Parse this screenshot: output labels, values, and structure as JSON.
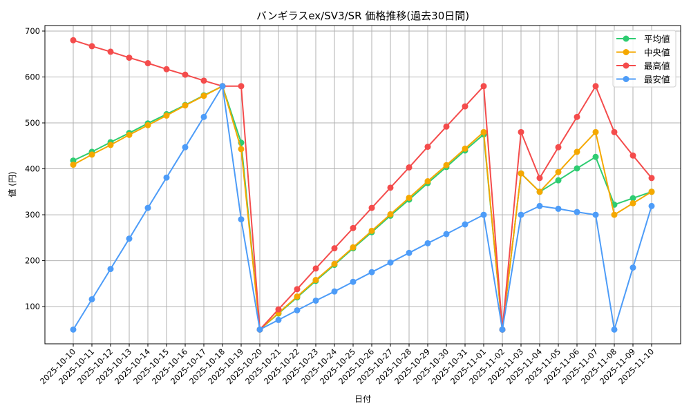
{
  "chart_data": {
    "type": "line",
    "title": "バンギラスex/SV3/SR 価格推移(過去30日間)",
    "xlabel": "日付",
    "ylabel": "値 (円)",
    "ylim": [
      19,
      712
    ],
    "yticks": [
      100,
      200,
      300,
      400,
      500,
      600,
      700
    ],
    "grid": true,
    "legend_position": "upper right",
    "x": [
      "2025-10-10",
      "2025-10-11",
      "2025-10-12",
      "2025-10-13",
      "2025-10-14",
      "2025-10-15",
      "2025-10-16",
      "2025-10-17",
      "2025-10-18",
      "2025-10-19",
      "2025-10-20",
      "2025-10-21",
      "2025-10-22",
      "2025-10-23",
      "2025-10-24",
      "2025-10-25",
      "2025-10-26",
      "2025-10-27",
      "2025-10-28",
      "2025-10-29",
      "2025-10-30",
      "2025-10-31",
      "2025-11-01",
      "2025-11-02",
      "2025-11-03",
      "2025-11-04",
      "2025-11-05",
      "2025-11-06",
      "2025-11-07",
      "2025-11-08",
      "2025-11-09",
      "2025-11-10"
    ],
    "series": [
      {
        "name": "平均値",
        "color": "#2ecc71",
        "values": [
          418,
          437,
          458,
          478,
          499,
          519,
          539,
          560,
          580,
          457,
          50,
          85,
          120,
          156,
          191,
          227,
          262,
          298,
          333,
          369,
          404,
          440,
          475,
          50,
          390,
          350,
          375,
          401,
          426,
          322,
          336,
          350
        ]
      },
      {
        "name": "中央値",
        "color": "#f5a800",
        "values": [
          409,
          431,
          452,
          474,
          495,
          516,
          538,
          559,
          580,
          443,
          50,
          86,
          122,
          158,
          193,
          229,
          265,
          301,
          337,
          373,
          408,
          444,
          480,
          50,
          390,
          350,
          393,
          437,
          480,
          300,
          325,
          350
        ]
      },
      {
        "name": "最高値",
        "color": "#f44c4c",
        "values": [
          680,
          667,
          655,
          642,
          630,
          617,
          605,
          592,
          580,
          580,
          50,
          94,
          138,
          183,
          227,
          271,
          315,
          359,
          403,
          448,
          492,
          536,
          580,
          50,
          480,
          380,
          447,
          513,
          580,
          480,
          429,
          380
        ]
      },
      {
        "name": "最安値",
        "color": "#4d9cf8",
        "values": [
          50,
          116,
          182,
          248,
          315,
          381,
          447,
          513,
          580,
          290,
          50,
          71,
          92,
          113,
          133,
          154,
          175,
          196,
          217,
          238,
          258,
          279,
          300,
          50,
          300,
          319,
          313,
          306,
          300,
          50,
          185,
          319
        ]
      }
    ]
  }
}
